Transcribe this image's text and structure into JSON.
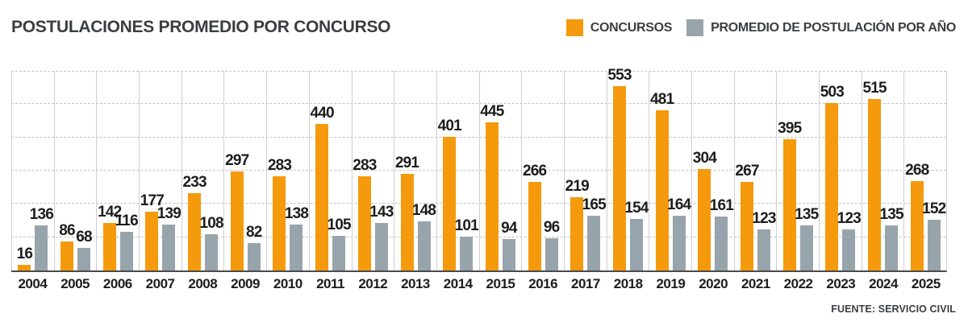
{
  "title": "POSTULACIONES PROMEDIO POR CONCURSO",
  "source": "FUENTE: SERVICIO CIVIL",
  "legend": {
    "items": [
      {
        "label": "CONCURSOS",
        "color": "#F49A0C"
      },
      {
        "label": "PROMEDIO DE POSTULACIÓN POR AÑO",
        "color": "#98A4AB"
      }
    ]
  },
  "chart_data": {
    "type": "bar",
    "title": "POSTULACIONES PROMEDIO POR CONCURSO",
    "categories": [
      "2004",
      "2005",
      "2006",
      "2007",
      "2008",
      "2009",
      "2010",
      "2011",
      "2012",
      "2013",
      "2014",
      "2015",
      "2016",
      "2017",
      "2018",
      "2019",
      "2020",
      "2021",
      "2022",
      "2023",
      "2024",
      "2025"
    ],
    "series": [
      {
        "name": "CONCURSOS",
        "color": "#F49A0C",
        "values": [
          16,
          86,
          142,
          177,
          233,
          297,
          283,
          440,
          283,
          291,
          401,
          445,
          266,
          219,
          553,
          481,
          304,
          267,
          395,
          503,
          515,
          268
        ]
      },
      {
        "name": "PROMEDIO DE POSTULACIÓN POR AÑO",
        "color": "#98A4AB",
        "values": [
          136,
          68,
          116,
          139,
          108,
          82,
          138,
          105,
          143,
          148,
          101,
          94,
          96,
          165,
          154,
          164,
          161,
          123,
          135,
          123,
          135,
          152
        ]
      }
    ],
    "xlabel": "",
    "ylabel": "",
    "ylim": [
      0,
      600
    ],
    "gridline_step": 100,
    "grid": "horizontal-dashed",
    "value_labels": "above-bars",
    "legend_position": "top-right",
    "source": "FUENTE: SERVICIO CIVIL"
  }
}
